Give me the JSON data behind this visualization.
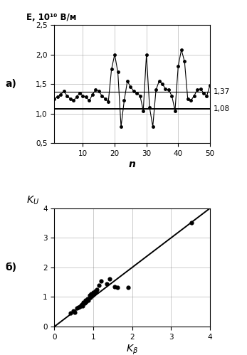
{
  "chart_a": {
    "top_label": "E, 10¹⁰ В/м",
    "xlabel": "n",
    "ylim": [
      0.5,
      2.5
    ],
    "xlim": [
      1,
      50
    ],
    "yticks": [
      0.5,
      1.0,
      1.5,
      2.0,
      2.5
    ],
    "ytick_labels": [
      "0,5",
      "1,0",
      "1,5",
      "2,0",
      "2,5"
    ],
    "xticks": [
      10,
      20,
      30,
      40,
      50
    ],
    "hline1": 1.37,
    "hline2": 1.08,
    "hline1_label": "1,37",
    "hline2_label": "1,08",
    "n_values": [
      1,
      2,
      3,
      4,
      5,
      6,
      7,
      8,
      9,
      10,
      11,
      12,
      13,
      14,
      15,
      16,
      17,
      18,
      19,
      20,
      21,
      22,
      23,
      24,
      25,
      26,
      27,
      28,
      29,
      30,
      31,
      32,
      33,
      34,
      35,
      36,
      37,
      38,
      39,
      40,
      41,
      42,
      43,
      44,
      45,
      46,
      47,
      48,
      49,
      50
    ],
    "e_values": [
      1.25,
      1.28,
      1.32,
      1.38,
      1.3,
      1.25,
      1.22,
      1.28,
      1.35,
      1.3,
      1.28,
      1.22,
      1.32,
      1.4,
      1.38,
      1.3,
      1.25,
      1.2,
      1.75,
      2.0,
      1.7,
      0.78,
      1.22,
      1.55,
      1.45,
      1.38,
      1.35,
      1.3,
      1.05,
      2.0,
      1.1,
      0.78,
      1.4,
      1.55,
      1.5,
      1.42,
      1.4,
      1.3,
      1.05,
      1.8,
      2.08,
      1.88,
      1.25,
      1.22,
      1.3,
      1.4,
      1.42,
      1.35,
      1.3,
      1.48
    ]
  },
  "chart_b": {
    "top_label": "K_U",
    "xlabel_label": "K_beta",
    "xlim": [
      0,
      4
    ],
    "ylim": [
      0,
      4
    ],
    "xticks": [
      0,
      1,
      2,
      3,
      4
    ],
    "yticks": [
      0,
      1,
      2,
      3,
      4
    ],
    "scatter_x": [
      0.42,
      0.48,
      0.52,
      0.58,
      0.62,
      0.65,
      0.68,
      0.7,
      0.72,
      0.75,
      0.78,
      0.8,
      0.82,
      0.85,
      0.87,
      0.9,
      0.92,
      0.95,
      0.98,
      1.0,
      1.02,
      1.05,
      1.08,
      1.1,
      1.15,
      1.2,
      1.35,
      1.42,
      1.55,
      1.62,
      1.9,
      3.52
    ],
    "scatter_y": [
      0.45,
      0.52,
      0.48,
      0.62,
      0.65,
      0.68,
      0.72,
      0.75,
      0.7,
      0.82,
      0.8,
      0.88,
      0.85,
      0.95,
      0.9,
      1.05,
      0.98,
      1.1,
      1.05,
      1.15,
      1.12,
      1.2,
      1.18,
      1.25,
      1.4,
      1.55,
      1.45,
      1.62,
      1.35,
      1.32,
      1.32,
      3.52
    ],
    "diagonal": [
      0,
      4
    ]
  },
  "label_a": "а)",
  "label_b": "б)"
}
